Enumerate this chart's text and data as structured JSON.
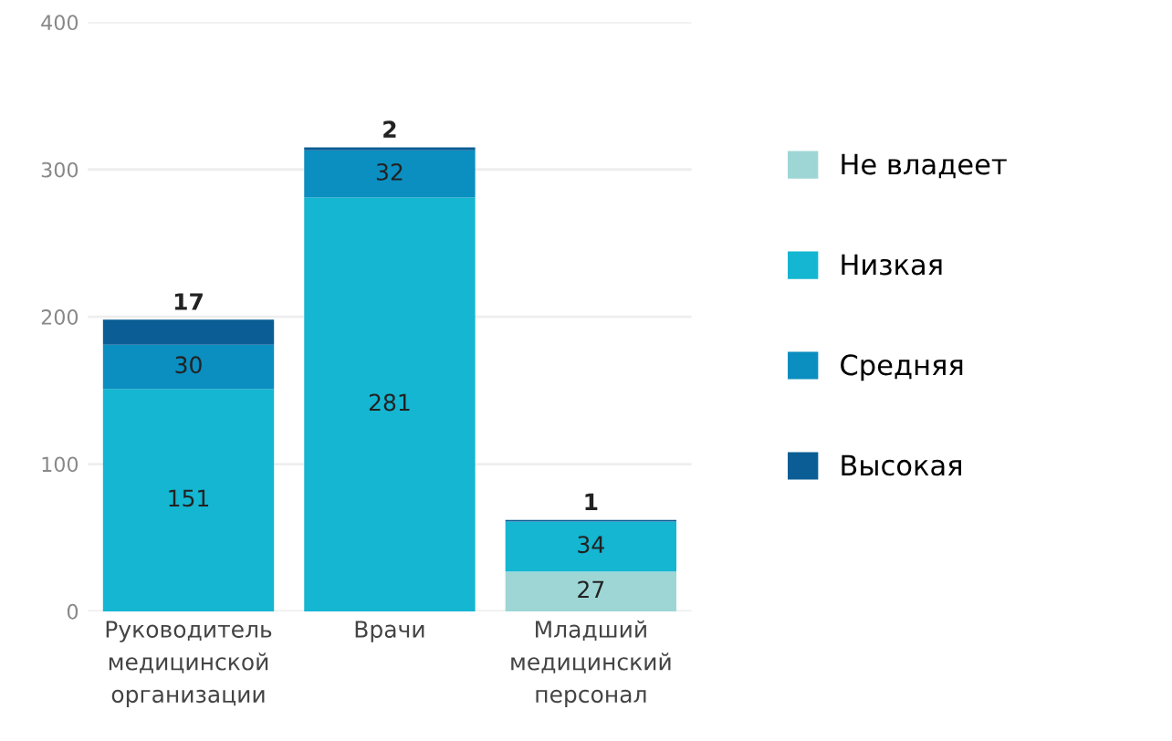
{
  "chart_data": {
    "type": "bar",
    "stacked": true,
    "categories": [
      "Руководитель\nмедицинской\nорганизации",
      "Врачи",
      "Младший\nмедицинский\nперсонал"
    ],
    "series": [
      {
        "name": "Не владеет",
        "color": "#9ed6d6",
        "values": [
          null,
          null,
          27
        ],
        "value_labels": [
          null,
          null,
          "27"
        ]
      },
      {
        "name": "Низкая",
        "color": "#14b6d1",
        "values": [
          151,
          281,
          34
        ],
        "value_labels": [
          "151",
          "281",
          "34"
        ]
      },
      {
        "name": "Средняя",
        "color": "#0b8ec0",
        "values": [
          30,
          32,
          null
        ],
        "value_labels": [
          "30",
          "32",
          null
        ]
      },
      {
        "name": "Высокая",
        "color": "#0a5e95",
        "values": [
          17,
          2,
          1
        ],
        "value_labels": [
          "17",
          "2",
          "1"
        ]
      }
    ],
    "ylim": [
      0,
      400
    ],
    "yticks": [
      0,
      100,
      200,
      300,
      400
    ],
    "grid": "y",
    "legend": "right"
  }
}
